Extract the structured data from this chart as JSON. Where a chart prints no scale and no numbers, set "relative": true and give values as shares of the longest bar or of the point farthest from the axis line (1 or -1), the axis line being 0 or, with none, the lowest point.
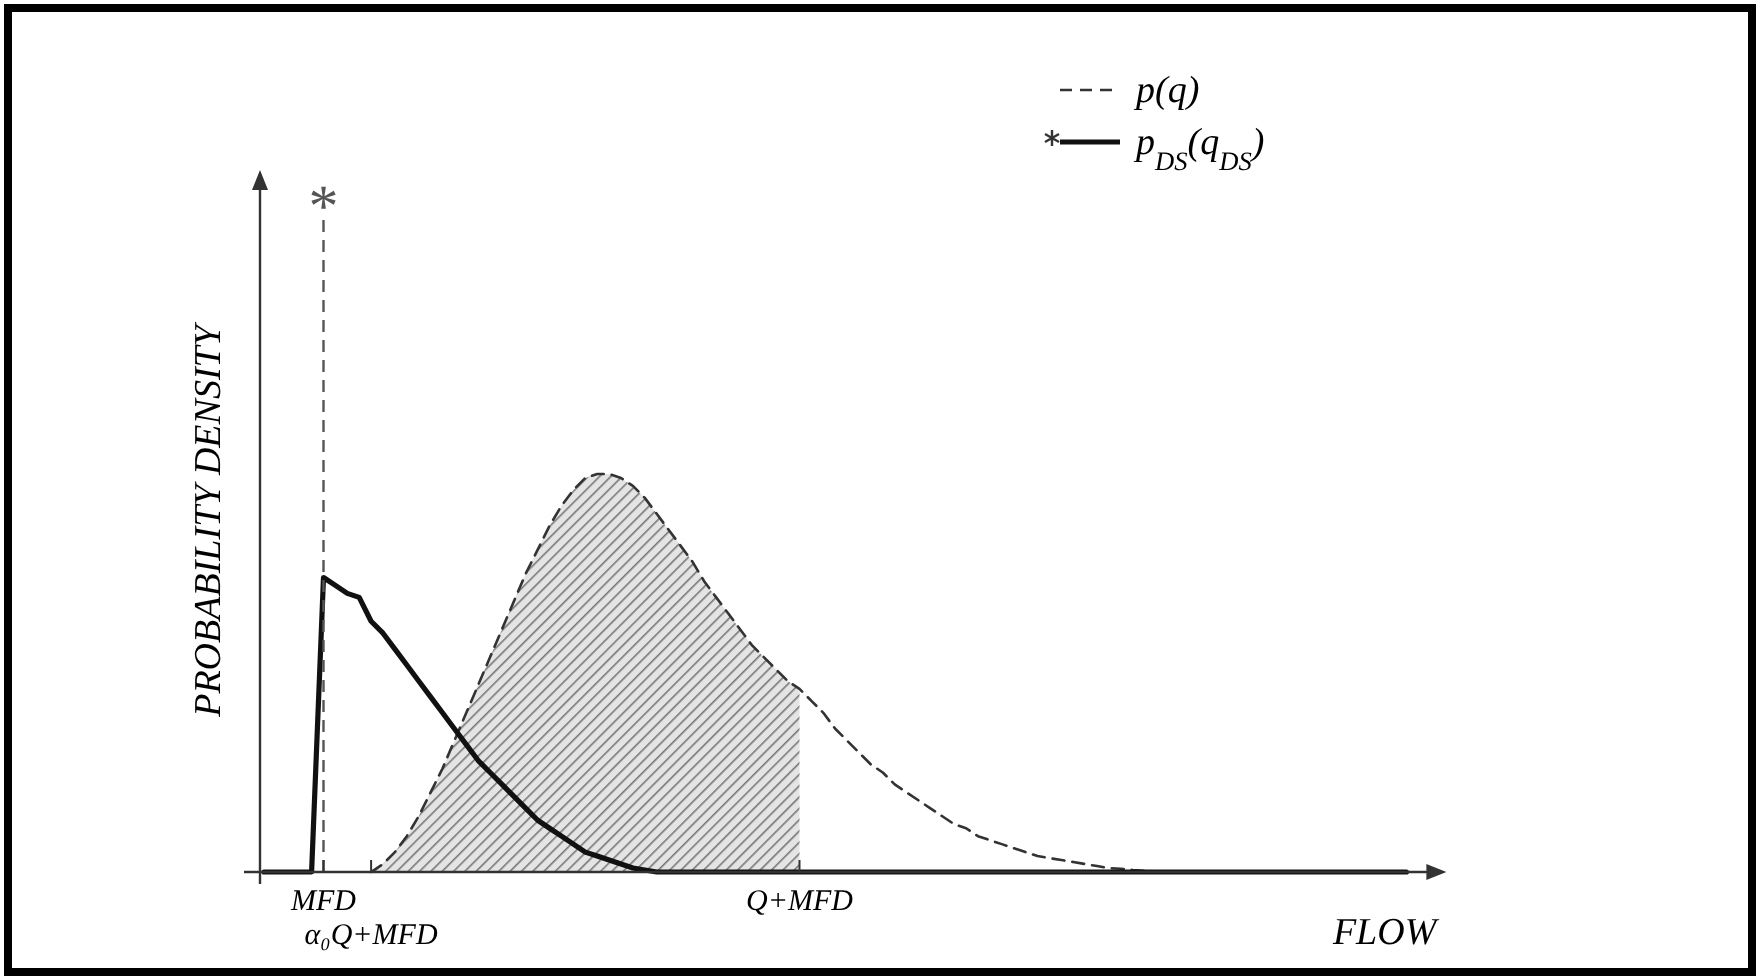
{
  "chart_data": {
    "type": "line",
    "relative": true,
    "xlabel": "FLOW",
    "ylabel": "PROBABILITY DENSITY",
    "legend": "top right",
    "grid": false,
    "categories": [
      null,
      null,
      null,
      null,
      null,
      "MFD",
      null,
      null,
      null,
      "α₀Q+MFD",
      null,
      null,
      null,
      null,
      null,
      null,
      null,
      null,
      null,
      null,
      null,
      null,
      null,
      null,
      null,
      null,
      null,
      null,
      null,
      null,
      null,
      null,
      null,
      null,
      null,
      null,
      null,
      null,
      null,
      null,
      null,
      null,
      null,
      null,
      null,
      "Q+MFD",
      null,
      null,
      null,
      null,
      null,
      null,
      null,
      null,
      null,
      null,
      null,
      null,
      null,
      null,
      null,
      null,
      null,
      null,
      null,
      null,
      null,
      null,
      null,
      null,
      null,
      null,
      null,
      null,
      null,
      null,
      null,
      null,
      null,
      null,
      null,
      null,
      null,
      null,
      null,
      null,
      null,
      null,
      null,
      null,
      null,
      null,
      null,
      null,
      null,
      null,
      null
    ],
    "series": [
      {
        "type": "area",
        "color": "#777777",
        "values": [
          null,
          null,
          null,
          null,
          null,
          null,
          null,
          null,
          null,
          0,
          0.02,
          0.05,
          0.09,
          0.14,
          0.2,
          0.26,
          0.33,
          0.4,
          0.47,
          0.54,
          0.61,
          0.68,
          0.75,
          0.81,
          0.87,
          0.92,
          0.96,
          0.99,
          1,
          1,
          0.99,
          0.97,
          0.94,
          0.9,
          0.86,
          0.82,
          0.78,
          0.73,
          0.69,
          0.65,
          0.61,
          0.57,
          0.54,
          0.51,
          0.48,
          0.46,
          null,
          null,
          null,
          null,
          null,
          null,
          null,
          null,
          null,
          null,
          null,
          null,
          null,
          null,
          null,
          null,
          null,
          null,
          null,
          null,
          null,
          null,
          null,
          null,
          null,
          null,
          null,
          null,
          null,
          null,
          null,
          null,
          null,
          null,
          null,
          null,
          null,
          null,
          null,
          null,
          null,
          null,
          null,
          null,
          null,
          null,
          null,
          null,
          null,
          null,
          null
        ]
      },
      {
        "name": "p(q)",
        "color": "#333333",
        "line_style": "dashed",
        "values": [
          null,
          null,
          null,
          null,
          null,
          null,
          null,
          null,
          null,
          0,
          0.02,
          0.05,
          0.09,
          0.14,
          0.2,
          0.26,
          0.33,
          0.4,
          0.47,
          0.54,
          0.61,
          0.68,
          0.75,
          0.81,
          0.87,
          0.92,
          0.96,
          0.99,
          1,
          1,
          0.99,
          0.97,
          0.94,
          0.9,
          0.86,
          0.82,
          0.78,
          0.73,
          0.69,
          0.65,
          0.61,
          0.57,
          0.54,
          0.51,
          0.48,
          0.46,
          0.43,
          0.4,
          0.36,
          0.33,
          0.3,
          0.27,
          0.25,
          0.22,
          0.2,
          0.18,
          0.16,
          0.14,
          0.12,
          0.11,
          0.09,
          0.08,
          0.07,
          0.06,
          0.05,
          0.04,
          0.035,
          0.03,
          0.025,
          0.02,
          0.015,
          0.01,
          0.008,
          0.005,
          0.003,
          0,
          null,
          null,
          null,
          null,
          null,
          null,
          null,
          null,
          null,
          null,
          null,
          null,
          null,
          null,
          null,
          null,
          null,
          null,
          null,
          null,
          null
        ]
      },
      {
        "name": "p$_{DS}$(q$_{DS}$)",
        "color": "#111111",
        "line_style": "solid",
        "values": [
          0,
          0,
          0,
          0,
          0,
          0.74,
          0.72,
          0.7,
          0.69,
          0.63,
          0.6,
          0.56,
          0.52,
          0.48,
          0.44,
          0.4,
          0.36,
          0.32,
          0.28,
          0.25,
          0.22,
          0.19,
          0.16,
          0.13,
          0.11,
          0.09,
          0.07,
          0.05,
          0.04,
          0.03,
          0.02,
          0.01,
          0.005,
          0,
          0,
          0,
          0,
          0,
          0,
          0,
          0,
          0,
          0,
          0,
          0,
          0,
          0,
          0,
          0,
          0,
          0,
          0,
          0,
          0,
          0,
          0,
          0,
          0,
          0,
          0,
          0,
          0,
          0,
          0,
          0,
          0,
          0,
          0,
          0,
          0,
          0,
          0,
          0,
          0,
          0,
          0,
          0,
          0,
          0,
          0,
          0,
          0,
          0,
          0,
          0,
          0,
          0,
          0,
          0,
          0,
          0,
          0,
          0,
          0,
          0,
          0,
          0
        ]
      }
    ],
    "ref_lines": [
      {
        "axis": "x",
        "value": "MFD",
        "label": "*",
        "color": "#555555",
        "line_style": "dashed"
      }
    ]
  }
}
